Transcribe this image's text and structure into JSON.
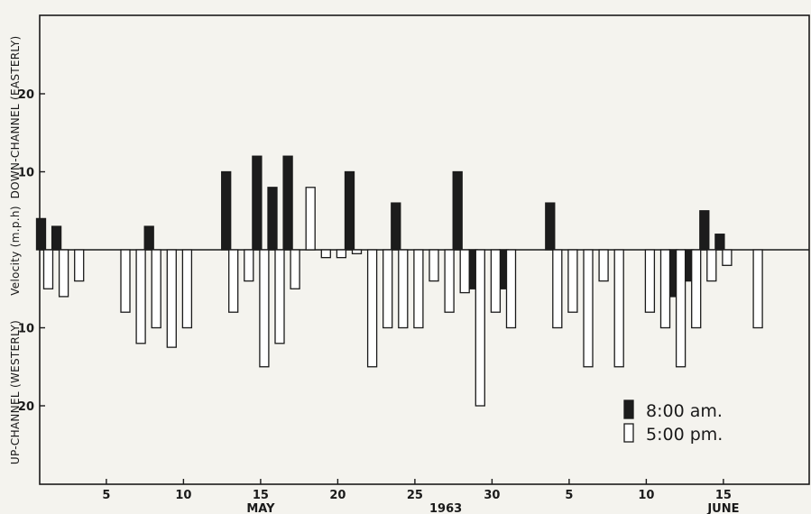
{
  "chart_data": {
    "type": "bar",
    "axis_labels": {
      "down_channel": "DOWN-CHANNEL (EASTERLY)",
      "velocity": "Velocity (m.p.h)",
      "up_channel": "UP-CHANNEL (WESTERLY)"
    },
    "y_tick_labels": [
      {
        "value": 20,
        "label": "20"
      },
      {
        "value": 10,
        "label": "10"
      },
      {
        "value": -10,
        "label": "10"
      },
      {
        "value": -20,
        "label": "20"
      }
    ],
    "ylim": [
      -30,
      30
    ],
    "x_tick_labels": [
      {
        "day": 5,
        "label": "5"
      },
      {
        "day": 10,
        "label": "10"
      },
      {
        "day": 15,
        "label": "15"
      },
      {
        "day": 20,
        "label": "20"
      },
      {
        "day": 25,
        "label": "25"
      },
      {
        "day": 30,
        "label": "30"
      },
      {
        "day": 35,
        "label": "5"
      },
      {
        "day": 40,
        "label": "10"
      },
      {
        "day": 45,
        "label": "15"
      }
    ],
    "xlim": [
      -0.5,
      49.5
    ],
    "month_labels": [
      {
        "day": 15,
        "label": "MAY"
      },
      {
        "day": 45,
        "label": "JUNE"
      }
    ],
    "year_label": {
      "day": 27,
      "label": "1963"
    },
    "legend": [
      {
        "name": "8:00 am.",
        "color": "#1c1c1c"
      },
      {
        "name": "5:00 pm.",
        "color": "#ffffff"
      }
    ],
    "legend_position": "bottom-right",
    "series": [
      {
        "name": "8:00 am.",
        "color": "#1c1c1c",
        "points": [
          {
            "day": 1,
            "value": 4
          },
          {
            "day": 2,
            "value": 3
          },
          {
            "day": 8,
            "value": 3
          },
          {
            "day": 13,
            "value": 10
          },
          {
            "day": 15,
            "value": 12
          },
          {
            "day": 16,
            "value": 8
          },
          {
            "day": 17,
            "value": 12
          },
          {
            "day": 21,
            "value": 10
          },
          {
            "day": 24,
            "value": 6
          },
          {
            "day": 28,
            "value": 10
          },
          {
            "day": 29,
            "value": -5
          },
          {
            "day": 31,
            "value": -5
          },
          {
            "day": 34,
            "value": 6
          },
          {
            "day": 42,
            "value": -6
          },
          {
            "day": 43,
            "value": -4
          },
          {
            "day": 44,
            "value": 5
          },
          {
            "day": 45,
            "value": 2
          }
        ]
      },
      {
        "name": "5:00 pm.",
        "color": "#ffffff",
        "points": [
          {
            "day": 1,
            "value": -5
          },
          {
            "day": 2,
            "value": -6
          },
          {
            "day": 3,
            "value": -4
          },
          {
            "day": 6,
            "value": -8
          },
          {
            "day": 7,
            "value": -12
          },
          {
            "day": 8,
            "value": -10
          },
          {
            "day": 9,
            "value": -12.5
          },
          {
            "day": 10,
            "value": -10
          },
          {
            "day": 13,
            "value": -8
          },
          {
            "day": 14,
            "value": -4
          },
          {
            "day": 15,
            "value": -15
          },
          {
            "day": 16,
            "value": -12
          },
          {
            "day": 17,
            "value": -5
          },
          {
            "day": 18,
            "value": 8
          },
          {
            "day": 19,
            "value": -1
          },
          {
            "day": 20,
            "value": -1
          },
          {
            "day": 21,
            "value": -0.5
          },
          {
            "day": 22,
            "value": -15
          },
          {
            "day": 23,
            "value": -10
          },
          {
            "day": 24,
            "value": -10
          },
          {
            "day": 25,
            "value": -10
          },
          {
            "day": 26,
            "value": -4
          },
          {
            "day": 27,
            "value": -8
          },
          {
            "day": 28,
            "value": -5.5
          },
          {
            "day": 29,
            "value": -20
          },
          {
            "day": 30,
            "value": -8
          },
          {
            "day": 31,
            "value": -10
          },
          {
            "day": 34,
            "value": -10
          },
          {
            "day": 35,
            "value": -8
          },
          {
            "day": 36,
            "value": -15
          },
          {
            "day": 37,
            "value": -4
          },
          {
            "day": 38,
            "value": -15
          },
          {
            "day": 40,
            "value": -8
          },
          {
            "day": 41,
            "value": -10
          },
          {
            "day": 42,
            "value": -15
          },
          {
            "day": 43,
            "value": -10
          },
          {
            "day": 44,
            "value": -4
          },
          {
            "day": 45,
            "value": -2
          },
          {
            "day": 47,
            "value": -10
          }
        ]
      }
    ]
  }
}
